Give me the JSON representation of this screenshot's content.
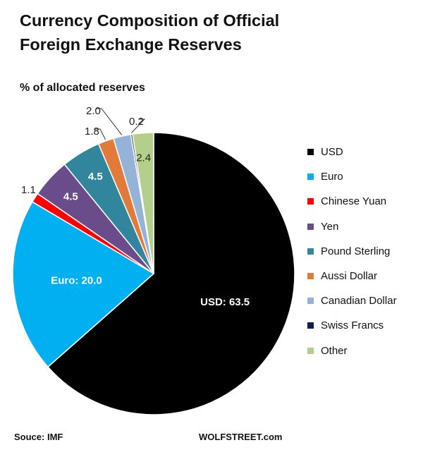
{
  "title_line1": "Currency Composition of Official",
  "title_line2": "Foreign Exchange Reserves",
  "subtitle": "% of allocated reserves",
  "source": "Souce: IMF",
  "site": "WOLFSTREET.com",
  "chart_data": {
    "type": "pie",
    "title": "Currency Composition of Official Foreign Exchange Reserves",
    "subtitle": "% of allocated reserves",
    "legend_position": "right",
    "slices": [
      {
        "name": "USD",
        "value": 63.5,
        "label": "USD: 63.5",
        "color": "#000000"
      },
      {
        "name": "Euro",
        "value": 20.0,
        "label": "Euro:  20.0",
        "color": "#00b0f0"
      },
      {
        "name": "Chinese Yuan",
        "value": 1.1,
        "label": "1.1",
        "color": "#ff0000"
      },
      {
        "name": "Yen",
        "value": 4.5,
        "label": "4.5",
        "color": "#6b4c8a"
      },
      {
        "name": "Pound Sterling",
        "value": 4.5,
        "label": "4.5",
        "color": "#31859c"
      },
      {
        "name": "Aussi Dollar",
        "value": 1.8,
        "label": "1.8",
        "color": "#e07b39"
      },
      {
        "name": "Canadian Dollar",
        "value": 2.0,
        "label": "2.0",
        "color": "#95b3d7"
      },
      {
        "name": "Swiss Francs",
        "value": 0.2,
        "label": "0.2",
        "color": "#0d1f4f"
      },
      {
        "name": "Other",
        "value": 2.4,
        "label": "2.4",
        "color": "#b4cf8c"
      }
    ]
  }
}
